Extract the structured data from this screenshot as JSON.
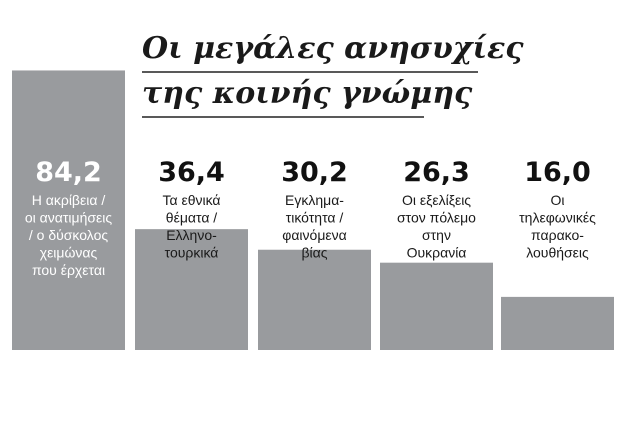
{
  "title_lines": [
    "Οι μεγάλες ανησυχίες",
    "της κοινής γνώμης"
  ],
  "chart_data": {
    "type": "bar",
    "title": "Οι μεγάλες ανησυχίες της κοινής γνώμης",
    "categories": [
      "Η ακρίβεια / οι ανατιμήσεις / ο δύσκολος χειμώνας που έρχεται",
      "Τα εθνικά θέματα / Ελληνο-τουρκικά",
      "Εγκλημα-τικότητα / φαινόμενα βίας",
      "Οι εξελίξεις στον πόλεμο στην Ουκρανία",
      "Οι τηλεφωνικές παρακο-λουθήσεις"
    ],
    "label_lines": [
      [
        "Η ακρίβεια /",
        "οι ανατιμήσεις",
        "/ ο δύσκολος",
        "χειμώνας",
        "που έρχεται"
      ],
      [
        "Τα εθνικά",
        "θέματα /",
        "Ελληνο-",
        "τουρκικά"
      ],
      [
        "Εγκλημα-",
        "τικότητα /",
        "φαινόμενα",
        "βίας"
      ],
      [
        "Οι εξελίξεις",
        "στον πόλεμο",
        "στην",
        "Ουκρανία"
      ],
      [
        "Οι",
        "τηλεφωνικές",
        "παρακο-",
        "λουθήσεις"
      ]
    ],
    "values": [
      84.2,
      36.4,
      30.2,
      26.3,
      16.0
    ],
    "value_labels": [
      "84,2",
      "36,4",
      "30,2",
      "26,3",
      "16,0"
    ],
    "ylim": [
      0,
      100
    ],
    "xlabel": "",
    "ylabel": "",
    "colors": {
      "bar": "#999b9e",
      "text": "#1a1a1a",
      "inbar_text": "#ffffff"
    }
  }
}
